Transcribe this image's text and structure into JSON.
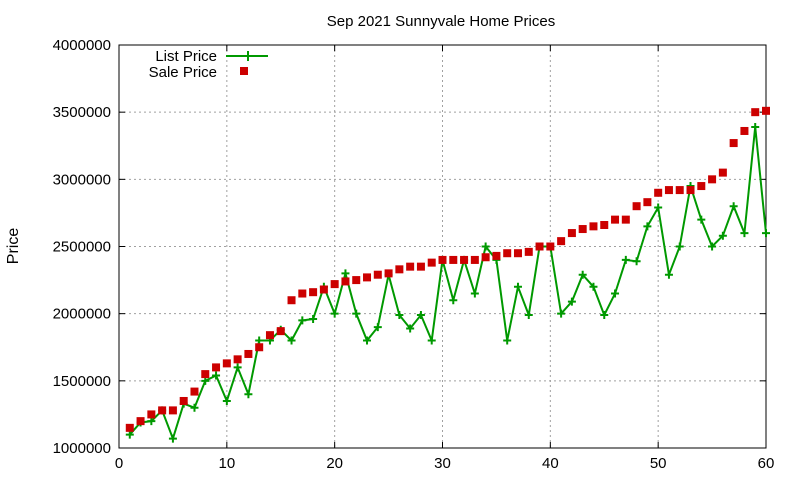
{
  "chart_data": {
    "type": "line",
    "title": "Sep 2021 Sunnyvale Home Prices",
    "xlabel": "",
    "ylabel": "Price",
    "xlim": [
      0,
      60
    ],
    "ylim": [
      1000000,
      4000000
    ],
    "xticks": [
      0,
      10,
      20,
      30,
      40,
      50,
      60
    ],
    "yticks": [
      1000000,
      1500000,
      2000000,
      2500000,
      3000000,
      3500000,
      4000000
    ],
    "grid": true,
    "legend": "top-left",
    "series": [
      {
        "name": "List Price",
        "style": "linespoints",
        "color": "#009900",
        "x": [
          1,
          2,
          3,
          4,
          5,
          6,
          7,
          8,
          9,
          10,
          11,
          12,
          13,
          14,
          15,
          16,
          17,
          18,
          19,
          20,
          21,
          22,
          23,
          24,
          25,
          26,
          27,
          28,
          29,
          30,
          31,
          32,
          33,
          34,
          35,
          36,
          37,
          38,
          39,
          40,
          41,
          42,
          43,
          44,
          45,
          46,
          47,
          48,
          49,
          50,
          51,
          52,
          53,
          54,
          55,
          56,
          57,
          58,
          59,
          60
        ],
        "values": [
          1100000,
          1190000,
          1200000,
          1280000,
          1070000,
          1330000,
          1300000,
          1500000,
          1540000,
          1350000,
          1600000,
          1400000,
          1800000,
          1800000,
          1880000,
          1800000,
          1950000,
          1960000,
          2200000,
          2000000,
          2300000,
          2000000,
          1800000,
          1900000,
          2290000,
          1990000,
          1890000,
          1990000,
          1800000,
          2400000,
          2100000,
          2400000,
          2150000,
          2500000,
          2400000,
          1800000,
          2200000,
          1990000,
          2500000,
          2500000,
          2000000,
          2090000,
          2290000,
          2200000,
          1990000,
          2150000,
          2400000,
          2390000,
          2650000,
          2790000,
          2290000,
          2500000,
          2950000,
          2700000,
          2500000,
          2580000,
          2800000,
          2600000,
          3390000,
          2600000
        ]
      },
      {
        "name": "Sale Price",
        "style": "points",
        "color": "#cc0000",
        "x": [
          1,
          2,
          3,
          4,
          5,
          6,
          7,
          8,
          9,
          10,
          11,
          12,
          13,
          14,
          15,
          16,
          17,
          18,
          19,
          20,
          21,
          22,
          23,
          24,
          25,
          26,
          27,
          28,
          29,
          30,
          31,
          32,
          33,
          34,
          35,
          36,
          37,
          38,
          39,
          40,
          41,
          42,
          43,
          44,
          45,
          46,
          47,
          48,
          49,
          50,
          51,
          52,
          53,
          54,
          55,
          56,
          57,
          58,
          59,
          60
        ],
        "values": [
          1150000,
          1200000,
          1250000,
          1280000,
          1280000,
          1350000,
          1420000,
          1550000,
          1600000,
          1630000,
          1660000,
          1700000,
          1750000,
          1840000,
          1870000,
          2100000,
          2150000,
          2160000,
          2180000,
          2220000,
          2240000,
          2250000,
          2270000,
          2290000,
          2300000,
          2330000,
          2350000,
          2350000,
          2380000,
          2400000,
          2400000,
          2400000,
          2400000,
          2420000,
          2430000,
          2450000,
          2450000,
          2460000,
          2500000,
          2500000,
          2540000,
          2600000,
          2630000,
          2650000,
          2660000,
          2700000,
          2700000,
          2800000,
          2830000,
          2900000,
          2920000,
          2920000,
          2920000,
          2950000,
          3000000,
          3050000,
          3270000,
          3360000,
          3500000,
          3510000
        ]
      }
    ]
  }
}
